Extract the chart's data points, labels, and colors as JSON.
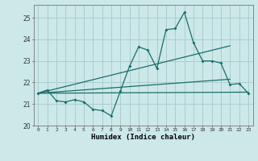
{
  "title": "",
  "xlabel": "Humidex (Indice chaleur)",
  "ylabel": "",
  "bg_color": "#cce8e8",
  "line_color": "#1a6e6a",
  "grid_color": "#aacece",
  "xlim": [
    -0.5,
    23.5
  ],
  "ylim": [
    20.0,
    25.6
  ],
  "yticks": [
    20,
    21,
    22,
    23,
    24,
    25
  ],
  "xticks": [
    0,
    1,
    2,
    3,
    4,
    5,
    6,
    7,
    8,
    9,
    10,
    11,
    12,
    13,
    14,
    15,
    16,
    17,
    18,
    19,
    20,
    21,
    22,
    23
  ],
  "series1_x": [
    0,
    1,
    2,
    3,
    4,
    5,
    6,
    7,
    8,
    9,
    10,
    11,
    12,
    13,
    14,
    15,
    16,
    17,
    18,
    19,
    20,
    21,
    22,
    23
  ],
  "series1_y": [
    21.5,
    21.65,
    21.15,
    21.1,
    21.2,
    21.1,
    20.75,
    20.7,
    20.45,
    21.6,
    22.75,
    23.65,
    23.5,
    22.65,
    24.45,
    24.5,
    25.25,
    23.85,
    23.0,
    23.0,
    22.9,
    21.9,
    21.95,
    21.5
  ],
  "series2_x": [
    0,
    23
  ],
  "series2_y": [
    21.5,
    21.55
  ],
  "series3_x": [
    0,
    21
  ],
  "series3_y": [
    21.5,
    23.7
  ],
  "series4_x": [
    0,
    21
  ],
  "series4_y": [
    21.5,
    22.15
  ]
}
